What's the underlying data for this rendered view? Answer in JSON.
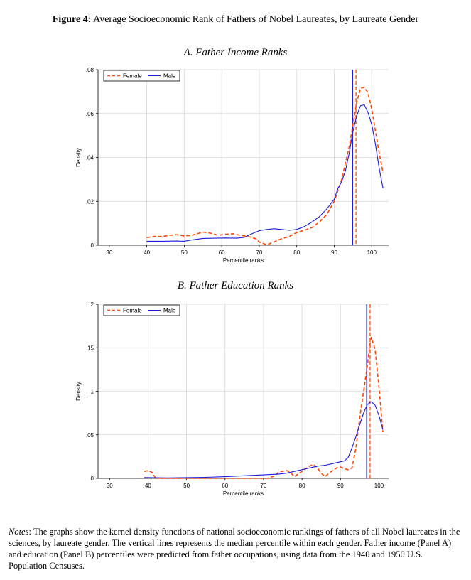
{
  "figure": {
    "label": "Figure 4:",
    "title": "Average Socioeconomic Rank of Fathers of Nobel Laureates, by Laureate Gender"
  },
  "notes": {
    "label": "Notes",
    "text": ": The graphs show the kernel density functions of national socioeconomic rankings of fathers of all Nobel laureates in the sciences, by laureate gender. The vertical lines represents the median percentile within each gender. Father income (Panel A) and education (Panel B) percentiles were predicted from father occupations, using data from the 1940 and 1950 U.S. Population Censuses."
  },
  "colors": {
    "female": "#ff4500",
    "male": "#1a1adb",
    "grid": "#d8d8d8"
  },
  "chart_data": [
    {
      "type": "line",
      "title": "A. Father Income Ranks",
      "xlabel": "Percentile ranks",
      "ylabel": "Density",
      "xlim": [
        27,
        104.5
      ],
      "ylim": [
        0,
        0.08
      ],
      "xticks": [
        30,
        40,
        50,
        60,
        70,
        80,
        90,
        100
      ],
      "xtick_labels": [
        "30",
        "40",
        "50",
        "60",
        "70",
        "80",
        "90",
        "100"
      ],
      "yticks": [
        0,
        0.02,
        0.04,
        0.06,
        0.08
      ],
      "ytick_labels": [
        "0",
        ".02",
        ".04",
        ".06",
        ".08"
      ],
      "legend": "top-left",
      "series": [
        {
          "name": "Female",
          "style": "dashed",
          "color": "#ff4500",
          "median": 95.8,
          "points": [
            [
              40,
              0.0035
            ],
            [
              42,
              0.004
            ],
            [
              44,
              0.004
            ],
            [
              46,
              0.0045
            ],
            [
              48,
              0.0048
            ],
            [
              50,
              0.0042
            ],
            [
              52,
              0.0045
            ],
            [
              54,
              0.0055
            ],
            [
              55,
              0.006
            ],
            [
              57,
              0.0055
            ],
            [
              59,
              0.0045
            ],
            [
              61,
              0.005
            ],
            [
              63,
              0.0052
            ],
            [
              65,
              0.0045
            ],
            [
              67,
              0.004
            ],
            [
              69,
              0.003
            ],
            [
              70,
              0.0015
            ],
            [
              72,
              0.0002
            ],
            [
              74,
              0.0015
            ],
            [
              76,
              0.003
            ],
            [
              78,
              0.004
            ],
            [
              80,
              0.0058
            ],
            [
              82,
              0.0068
            ],
            [
              84,
              0.008
            ],
            [
              86,
              0.0105
            ],
            [
              88,
              0.014
            ],
            [
              90,
              0.02
            ],
            [
              92,
              0.03
            ],
            [
              94,
              0.045
            ],
            [
              95,
              0.055
            ],
            [
              96,
              0.065
            ],
            [
              97,
              0.0715
            ],
            [
              98,
              0.072
            ],
            [
              99,
              0.0695
            ],
            [
              100,
              0.062
            ],
            [
              101,
              0.052
            ],
            [
              102,
              0.042
            ],
            [
              103,
              0.033
            ]
          ]
        },
        {
          "name": "Male",
          "style": "solid",
          "color": "#1a1adb",
          "median": 94.9,
          "points": [
            [
              40,
              0.0018
            ],
            [
              44,
              0.0018
            ],
            [
              48,
              0.0019
            ],
            [
              50,
              0.0018
            ],
            [
              52,
              0.0024
            ],
            [
              55,
              0.0031
            ],
            [
              58,
              0.0032
            ],
            [
              61,
              0.0033
            ],
            [
              64,
              0.0032
            ],
            [
              66,
              0.0036
            ],
            [
              68,
              0.0052
            ],
            [
              70,
              0.0066
            ],
            [
              72,
              0.0072
            ],
            [
              74,
              0.0075
            ],
            [
              76,
              0.0072
            ],
            [
              78,
              0.0068
            ],
            [
              80,
              0.0072
            ],
            [
              82,
              0.0085
            ],
            [
              84,
              0.0105
            ],
            [
              86,
              0.013
            ],
            [
              88,
              0.0165
            ],
            [
              90,
              0.021
            ],
            [
              91,
              0.026
            ],
            [
              92,
              0.029
            ],
            [
              93,
              0.034
            ],
            [
              94,
              0.042
            ],
            [
              95,
              0.052
            ],
            [
              96,
              0.059
            ],
            [
              97,
              0.0635
            ],
            [
              98,
              0.064
            ],
            [
              99,
              0.0605
            ],
            [
              100,
              0.055
            ],
            [
              101,
              0.046
            ],
            [
              102,
              0.035
            ],
            [
              103,
              0.026
            ]
          ]
        }
      ]
    },
    {
      "type": "line",
      "title": "B. Father Education Ranks",
      "xlabel": "Percentile ranks",
      "ylabel": "Density",
      "xlim": [
        27,
        102.5
      ],
      "ylim": [
        0,
        0.2
      ],
      "xticks": [
        30,
        40,
        50,
        60,
        70,
        80,
        90,
        100
      ],
      "xtick_labels": [
        "30",
        "40",
        "50",
        "60",
        "70",
        "80",
        "90",
        "100"
      ],
      "yticks": [
        0,
        0.05,
        0.1,
        0.15,
        0.2
      ],
      "ytick_labels": [
        "0",
        ".05",
        ".1",
        ".15",
        ".2"
      ],
      "legend": "top-left",
      "series": [
        {
          "name": "Female",
          "style": "dashed",
          "color": "#ff4500",
          "median": 97.7,
          "points": [
            [
              39,
              0.008
            ],
            [
              40,
              0.009
            ],
            [
              41,
              0.007
            ],
            [
              42,
              0.0
            ],
            [
              44,
              0.0
            ],
            [
              48,
              0.0
            ],
            [
              52,
              0.0
            ],
            [
              56,
              0.0
            ],
            [
              60,
              0.0
            ],
            [
              64,
              0.0
            ],
            [
              68,
              0.0
            ],
            [
              71,
              0.0
            ],
            [
              73,
              0.003
            ],
            [
              74,
              0.0075
            ],
            [
              76,
              0.009
            ],
            [
              77,
              0.007
            ],
            [
              78,
              0.002
            ],
            [
              80,
              0.008
            ],
            [
              82,
              0.014
            ],
            [
              83,
              0.016
            ],
            [
              84,
              0.012
            ],
            [
              85,
              0.006
            ],
            [
              86,
              0.002
            ],
            [
              87,
              0.006
            ],
            [
              88,
              0.009
            ],
            [
              89,
              0.012
            ],
            [
              90,
              0.013
            ],
            [
              91,
              0.011
            ],
            [
              92,
              0.01
            ],
            [
              93,
              0.012
            ],
            [
              94,
              0.035
            ],
            [
              95,
              0.07
            ],
            [
              96,
              0.1
            ],
            [
              97,
              0.13
            ],
            [
              97.5,
              0.15
            ],
            [
              98,
              0.162
            ],
            [
              99,
              0.148
            ],
            [
              100,
              0.105
            ],
            [
              101,
              0.053
            ]
          ]
        },
        {
          "name": "Male",
          "style": "solid",
          "color": "#1a1adb",
          "median": 96.8,
          "points": [
            [
              39,
              0.001
            ],
            [
              42,
              0.0008
            ],
            [
              45,
              0.0006
            ],
            [
              50,
              0.0009
            ],
            [
              55,
              0.0012
            ],
            [
              60,
              0.002
            ],
            [
              65,
              0.003
            ],
            [
              70,
              0.004
            ],
            [
              74,
              0.005
            ],
            [
              76,
              0.006
            ],
            [
              78,
              0.008
            ],
            [
              80,
              0.01
            ],
            [
              82,
              0.012
            ],
            [
              84,
              0.014
            ],
            [
              86,
              0.015
            ],
            [
              88,
              0.017
            ],
            [
              90,
              0.019
            ],
            [
              91,
              0.02
            ],
            [
              92,
              0.024
            ],
            [
              93,
              0.035
            ],
            [
              94,
              0.048
            ],
            [
              95,
              0.062
            ],
            [
              96,
              0.075
            ],
            [
              97,
              0.085
            ],
            [
              98,
              0.088
            ],
            [
              99,
              0.084
            ],
            [
              100,
              0.072
            ],
            [
              101,
              0.056
            ]
          ]
        }
      ]
    }
  ]
}
